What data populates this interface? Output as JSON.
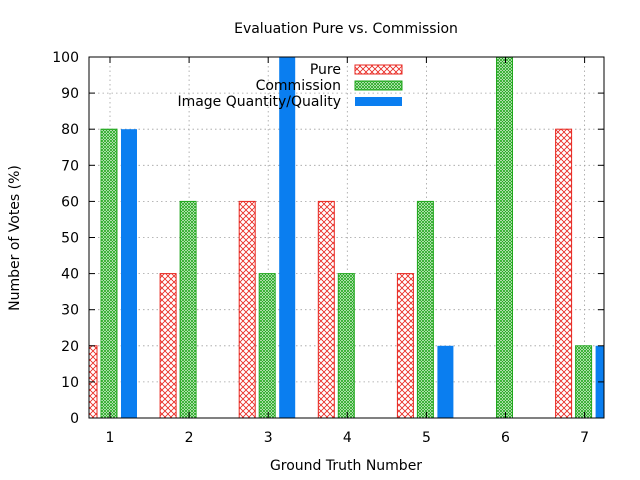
{
  "chart_data": {
    "type": "bar",
    "title": "Evaluation Pure vs. Commission",
    "xlabel": "Ground Truth Number",
    "ylabel": "Number of Votes (%)",
    "categories": [
      "1",
      "2",
      "3",
      "4",
      "5",
      "6",
      "7"
    ],
    "ylim": [
      0,
      100
    ],
    "yticks": [
      0,
      10,
      20,
      30,
      40,
      50,
      60,
      70,
      80,
      90,
      100
    ],
    "grid": true,
    "legend_position": "top-center",
    "series": [
      {
        "name": "Pure",
        "values": [
          20,
          40,
          60,
          60,
          40,
          0,
          80
        ],
        "color": "#e8261f",
        "fill": "crosshatch"
      },
      {
        "name": "Commission",
        "values": [
          80,
          60,
          40,
          40,
          60,
          100,
          20
        ],
        "color": "#22a81e",
        "fill": "dense-hatch"
      },
      {
        "name": "Image Quantity/Quality",
        "values": [
          80,
          0,
          100,
          0,
          20,
          0,
          20
        ],
        "color": "#0a7ef0",
        "fill": "solid"
      }
    ]
  }
}
